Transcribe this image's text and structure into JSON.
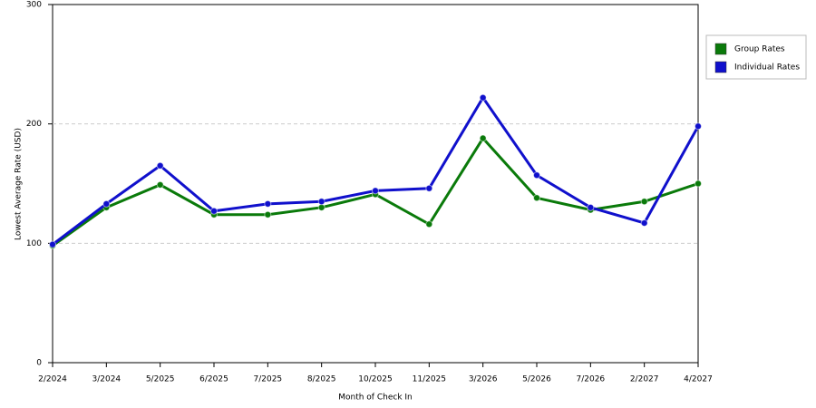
{
  "chart_data": {
    "type": "line",
    "x_label": "Month of Check In",
    "y_label": "Lowest Average Rate (USD)",
    "categories": [
      "2/2024",
      "3/2024",
      "5/2025",
      "6/2025",
      "7/2025",
      "8/2025",
      "10/2025",
      "11/2025",
      "3/2026",
      "5/2026",
      "7/2026",
      "2/2027",
      "4/2027"
    ],
    "series": [
      {
        "name": "Group Rates",
        "color": "#0a7a0a",
        "values": [
          98,
          130,
          149,
          124,
          124,
          130,
          141,
          116,
          188,
          138,
          128,
          135,
          150
        ]
      },
      {
        "name": "Individual Rates",
        "color": "#1010cc",
        "values": [
          99,
          133,
          165,
          127,
          133,
          135,
          144,
          146,
          222,
          157,
          130,
          117,
          198
        ]
      }
    ],
    "ylim": [
      0,
      300
    ],
    "yticks": [
      0,
      100,
      200,
      300
    ],
    "grid": true,
    "legend": "right"
  }
}
